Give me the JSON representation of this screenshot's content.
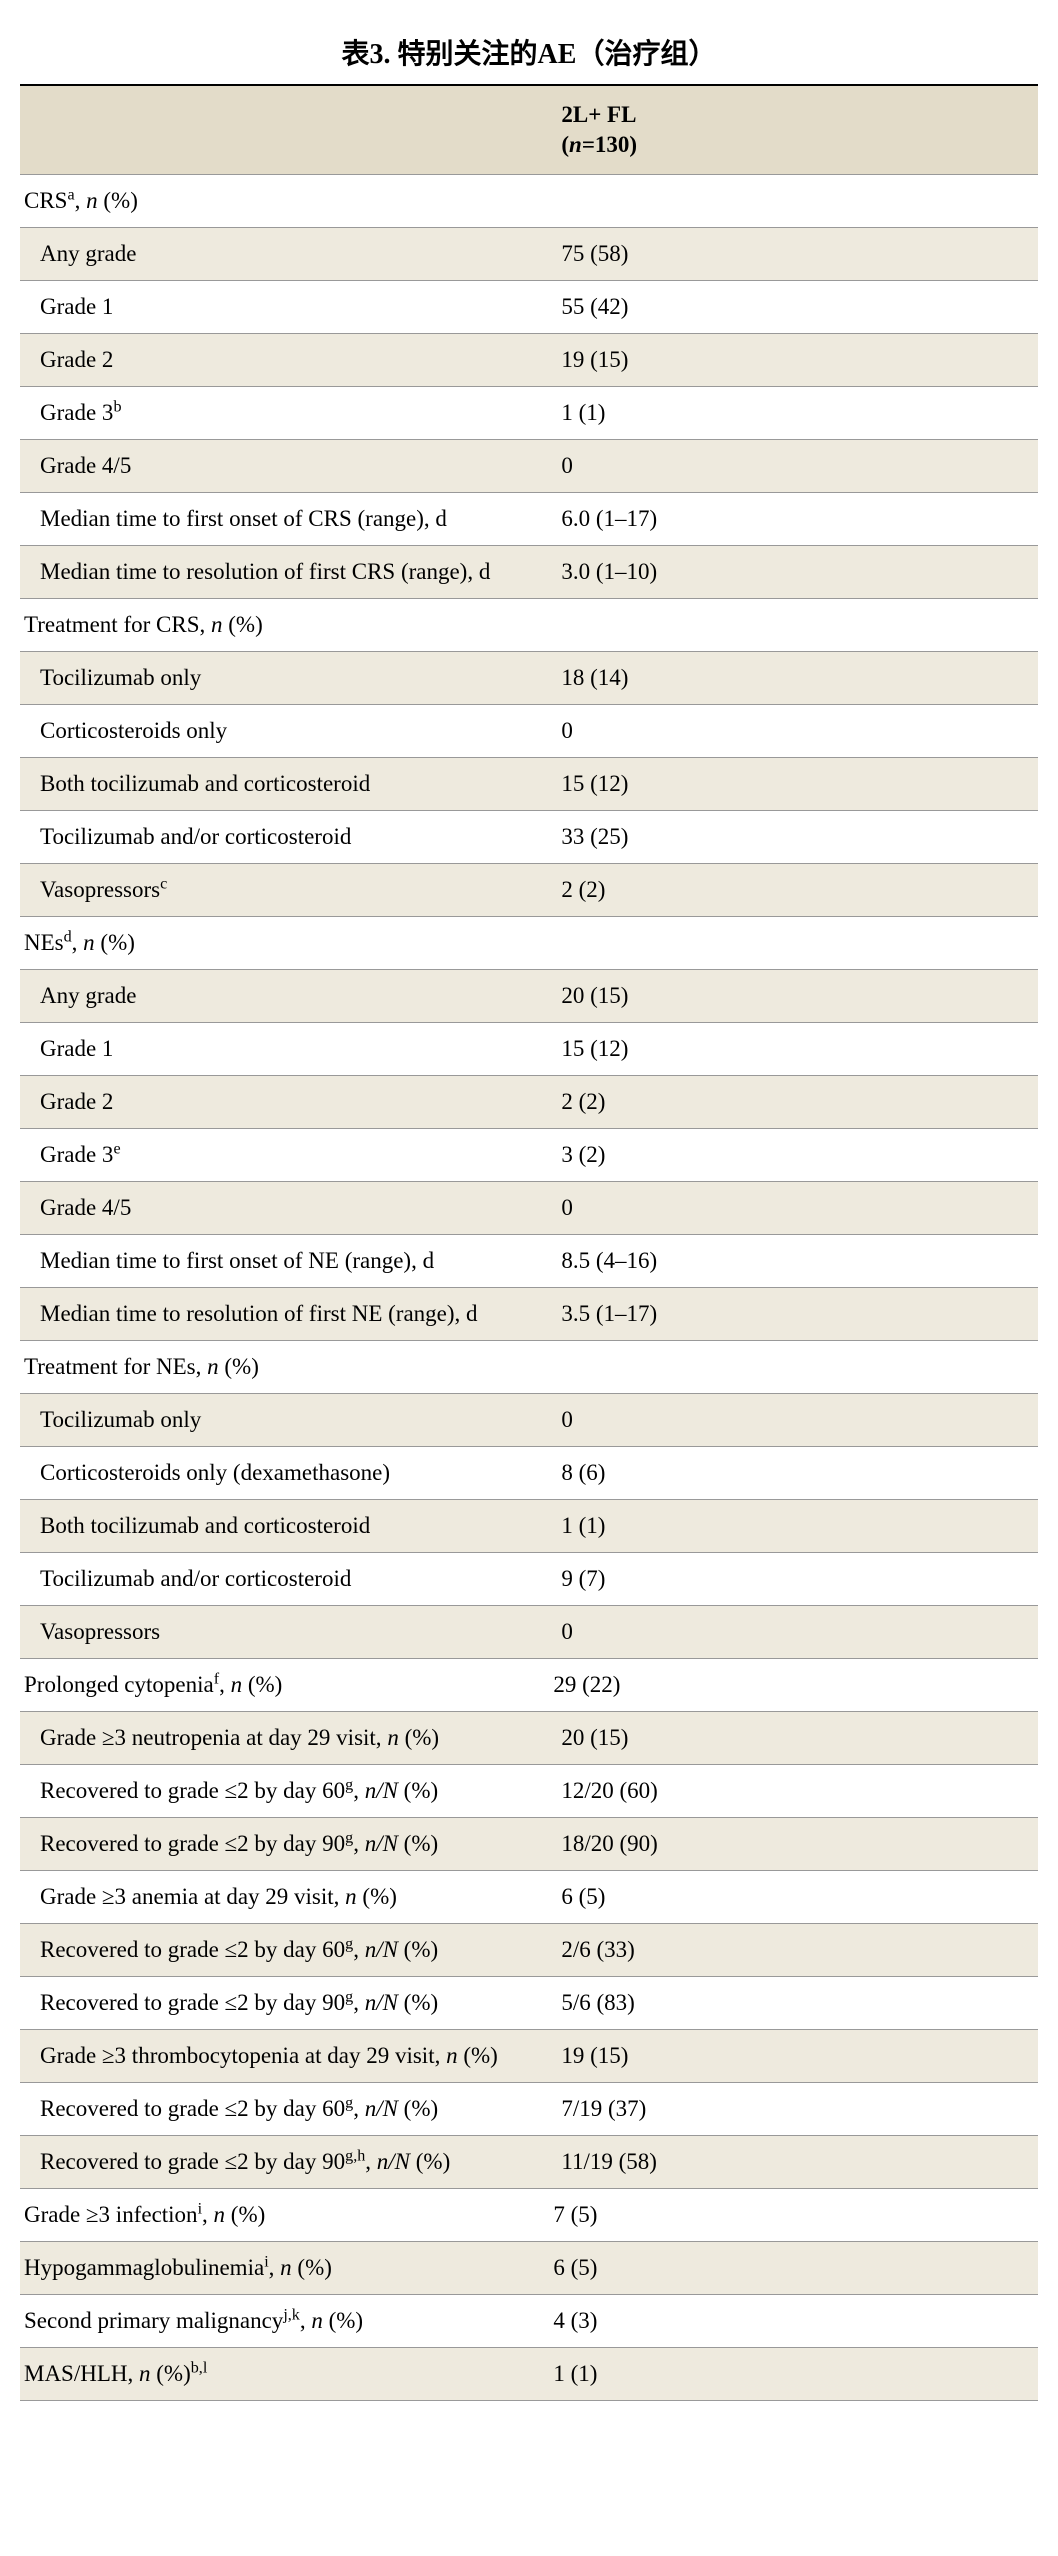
{
  "table": {
    "title": "表3. 特别关注的AE（治疗组）",
    "header_line1": "2L+ FL",
    "header_line2": "(<span class='n-ital'>n</span>=130)",
    "rows": [
      {
        "label": "CRS<sup>a</sup>, <span class='n-ital'>n</span> (%)",
        "val": "",
        "section": true,
        "stripe": "odd"
      },
      {
        "label": "Any grade",
        "val": "75 (58)",
        "stripe": "even"
      },
      {
        "label": "Grade 1",
        "val": "55 (42)",
        "stripe": "odd"
      },
      {
        "label": "Grade 2",
        "val": "19 (15)",
        "stripe": "even"
      },
      {
        "label": "Grade 3<sup>b</sup>",
        "val": "1 (1)",
        "stripe": "odd"
      },
      {
        "label": "Grade 4/5",
        "val": "0",
        "stripe": "even"
      },
      {
        "label": "Median time to first onset of CRS (range), d",
        "val": "6.0 (1–17)",
        "stripe": "odd"
      },
      {
        "label": "Median time to resolution of first CRS (range), d",
        "val": "3.0 (1–10)",
        "stripe": "even"
      },
      {
        "label": "Treatment for CRS, <span class='n-ital'>n</span> (%)",
        "val": "",
        "section": true,
        "stripe": "odd"
      },
      {
        "label": "Tocilizumab only",
        "val": "18 (14)",
        "stripe": "even"
      },
      {
        "label": "Corticosteroids only",
        "val": "0",
        "stripe": "odd"
      },
      {
        "label": "Both tocilizumab and corticosteroid",
        "val": "15 (12)",
        "stripe": "even"
      },
      {
        "label": "Tocilizumab and/or corticosteroid",
        "val": "33 (25)",
        "stripe": "odd"
      },
      {
        "label": "Vasopressors<sup>c</sup>",
        "val": "2 (2)",
        "stripe": "even"
      },
      {
        "label": "NEs<sup>d</sup>, <span class='n-ital'>n</span> (%)",
        "val": "",
        "section": true,
        "stripe": "odd"
      },
      {
        "label": "Any grade",
        "val": "20 (15)",
        "stripe": "even"
      },
      {
        "label": "Grade 1",
        "val": "15 (12)",
        "stripe": "odd"
      },
      {
        "label": "Grade 2",
        "val": "2 (2)",
        "stripe": "even"
      },
      {
        "label": "Grade 3<sup>e</sup>",
        "val": "3 (2)",
        "stripe": "odd"
      },
      {
        "label": "Grade 4/5",
        "val": "0",
        "stripe": "even"
      },
      {
        "label": "Median time to first onset of NE (range), d",
        "val": "8.5 (4–16)",
        "stripe": "odd"
      },
      {
        "label": "Median time to resolution of first NE (range), d",
        "val": "3.5 (1–17)",
        "stripe": "even"
      },
      {
        "label": "Treatment for NEs, <span class='n-ital'>n</span> (%)",
        "val": "",
        "section": true,
        "stripe": "odd"
      },
      {
        "label": "Tocilizumab only",
        "val": "0",
        "stripe": "even"
      },
      {
        "label": "Corticosteroids only (dexamethasone)",
        "val": "8 (6)",
        "stripe": "odd"
      },
      {
        "label": "Both tocilizumab and corticosteroid",
        "val": "1 (1)",
        "stripe": "even"
      },
      {
        "label": "Tocilizumab and/or corticosteroid",
        "val": "9 (7)",
        "stripe": "odd"
      },
      {
        "label": "Vasopressors",
        "val": "0",
        "stripe": "even"
      },
      {
        "label": "Prolonged cytopenia<sup>f</sup>, <span class='n-ital'>n</span> (%)",
        "val": "29 (22)",
        "section": true,
        "stripe": "odd"
      },
      {
        "label": "Grade ≥3 neutropenia at day 29 visit, <span class='n-ital'>n</span> (%)",
        "val": "20 (15)",
        "stripe": "even"
      },
      {
        "label": "Recovered to grade ≤2 by day 60<sup>g</sup>, <span class='n-ital'>n/N</span> (%)",
        "val": "12/20 (60)",
        "stripe": "odd"
      },
      {
        "label": "Recovered to grade ≤2 by day 90<sup>g</sup>, <span class='n-ital'>n/N</span> (%)",
        "val": "18/20 (90)",
        "stripe": "even"
      },
      {
        "label": "Grade ≥3 anemia at day 29 visit, <span class='n-ital'>n</span> (%)",
        "val": "6 (5)",
        "stripe": "odd"
      },
      {
        "label": "Recovered to grade ≤2 by day 60<sup>g</sup>, <span class='n-ital'>n/N</span> (%)",
        "val": "2/6 (33)",
        "stripe": "even"
      },
      {
        "label": "Recovered to grade ≤2 by day 90<sup>g</sup>, <span class='n-ital'>n/N</span> (%)",
        "val": "5/6 (83)",
        "stripe": "odd"
      },
      {
        "label": "Grade ≥3 thrombocytopenia at day 29 visit, <span class='n-ital'>n</span> (%)",
        "val": "19 (15)",
        "stripe": "even"
      },
      {
        "label": "Recovered to grade ≤2 by day 60<sup>g</sup>, <span class='n-ital'>n/N</span> (%)",
        "val": "7/19 (37)",
        "stripe": "odd"
      },
      {
        "label": "Recovered to grade ≤2 by day 90<sup>g,h</sup>, <span class='n-ital'>n/N</span> (%)",
        "val": "11/19 (58)",
        "stripe": "even"
      },
      {
        "label": "Grade ≥3 infection<sup>i</sup>, <span class='n-ital'>n</span> (%)",
        "val": "7 (5)",
        "section": true,
        "stripe": "odd"
      },
      {
        "label": "Hypogammaglobulinemia<sup>i</sup>, <span class='n-ital'>n</span> (%)",
        "val": "6 (5)",
        "section": true,
        "stripe": "even"
      },
      {
        "label": "Second primary malignancy<sup>j,k</sup>, <span class='n-ital'>n</span> (%)",
        "val": "4 (3)",
        "section": true,
        "stripe": "odd"
      },
      {
        "label": "MAS/HLH, <span class='n-ital'>n</span> (%)<sup>b,l</sup>",
        "val": "1 (1)",
        "section": true,
        "stripe": "even"
      }
    ],
    "styling": {
      "title_fontsize": 28,
      "cell_fontsize": 23,
      "header_bg": "#e3dcc9",
      "even_bg": "#eeeade",
      "odd_bg": "#ffffff",
      "border_color": "#999999",
      "text_color": "#000000",
      "font_family": "Georgia, serif",
      "col_label_width": "52%",
      "col_value_width": "48%"
    }
  }
}
